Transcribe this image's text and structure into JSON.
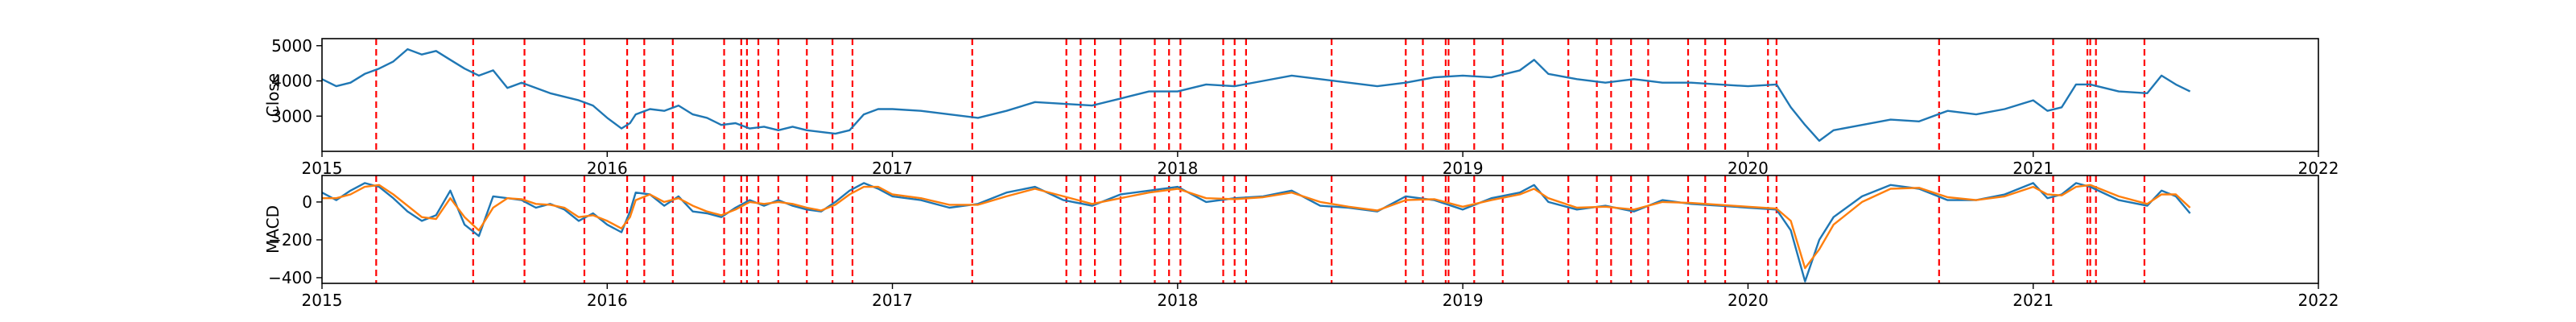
{
  "chart_data": [
    {
      "type": "line",
      "ylabel": "Close",
      "xlim": [
        2015.0,
        2022.0
      ],
      "ylim": [
        2000,
        5200
      ],
      "x_ticks": [
        2015,
        2016,
        2017,
        2018,
        2019,
        2020,
        2021,
        2022
      ],
      "x_tick_labels": [
        "2015",
        "2016",
        "2017",
        "2018",
        "2019",
        "2020",
        "2021",
        "2022"
      ],
      "y_ticks": [
        3000,
        4000,
        5000
      ],
      "y_tick_labels": [
        "3000",
        "4000",
        "5000"
      ],
      "line_color": "#1f77b4",
      "event_color": "#ff0000",
      "series": [
        {
          "x": [
            2015.0,
            2015.05,
            2015.1,
            2015.15,
            2015.2,
            2015.25,
            2015.3,
            2015.35,
            2015.4,
            2015.45,
            2015.5,
            2015.55,
            2015.6,
            2015.65,
            2015.7,
            2015.75,
            2015.8,
            2015.85,
            2015.9,
            2015.95,
            2016.0,
            2016.05,
            2016.08,
            2016.1,
            2016.15,
            2016.2,
            2016.25,
            2016.3,
            2016.35,
            2016.4,
            2016.45,
            2016.5,
            2016.55,
            2016.6,
            2016.65,
            2016.7,
            2016.75,
            2016.8,
            2016.85,
            2016.9,
            2016.95,
            2017.0,
            2017.1,
            2017.2,
            2017.3,
            2017.4,
            2017.5,
            2017.6,
            2017.7,
            2017.8,
            2017.9,
            2018.0,
            2018.1,
            2018.2,
            2018.3,
            2018.4,
            2018.5,
            2018.6,
            2018.7,
            2018.8,
            2018.9,
            2019.0,
            2019.1,
            2019.2,
            2019.25,
            2019.3,
            2019.4,
            2019.5,
            2019.6,
            2019.7,
            2019.8,
            2019.9,
            2020.0,
            2020.1,
            2020.15,
            2020.2,
            2020.25,
            2020.3,
            2020.4,
            2020.5,
            2020.6,
            2020.7,
            2020.8,
            2020.9,
            2021.0,
            2021.05,
            2021.1,
            2021.15,
            2021.2,
            2021.3,
            2021.4,
            2021.45,
            2021.5,
            2021.55
          ],
          "values": [
            4050,
            3850,
            3950,
            4200,
            4350,
            4550,
            4900,
            4750,
            4850,
            4600,
            4350,
            4150,
            4300,
            3800,
            3950,
            3800,
            3650,
            3550,
            3450,
            3300,
            2950,
            2650,
            2800,
            3050,
            3200,
            3150,
            3300,
            3050,
            2950,
            2750,
            2800,
            2650,
            2700,
            2600,
            2700,
            2600,
            2550,
            2500,
            2600,
            3050,
            3200,
            3200,
            3150,
            3050,
            2950,
            3150,
            3400,
            3350,
            3300,
            3500,
            3700,
            3700,
            3900,
            3850,
            4000,
            4150,
            4050,
            3950,
            3850,
            3950,
            4100,
            4150,
            4100,
            4300,
            4600,
            4200,
            4050,
            3950,
            4050,
            3950,
            3950,
            3900,
            3850,
            3900,
            3250,
            2750,
            2300,
            2600,
            2750,
            2900,
            2850,
            3150,
            3050,
            3200,
            3450,
            3150,
            3250,
            3900,
            3900,
            3700,
            3650,
            4150,
            3900,
            3700
          ]
        }
      ]
    },
    {
      "type": "line",
      "ylabel": "MACD",
      "xlim": [
        2015.0,
        2022.0
      ],
      "ylim": [
        -430,
        140
      ],
      "x_ticks": [
        2015,
        2016,
        2017,
        2018,
        2019,
        2020,
        2021,
        2022
      ],
      "x_tick_labels": [
        "2015",
        "2016",
        "2017",
        "2018",
        "2019",
        "2020",
        "2021",
        "2022"
      ],
      "y_ticks": [
        -400,
        -200,
        0
      ],
      "y_tick_labels": [
        "−400",
        "−200",
        "0"
      ],
      "event_color": "#ff0000",
      "series": [
        {
          "color": "#1f77b4",
          "x": [
            2015.0,
            2015.05,
            2015.1,
            2015.15,
            2015.2,
            2015.25,
            2015.3,
            2015.35,
            2015.4,
            2015.45,
            2015.5,
            2015.55,
            2015.6,
            2015.65,
            2015.7,
            2015.75,
            2015.8,
            2015.85,
            2015.9,
            2015.95,
            2016.0,
            2016.05,
            2016.08,
            2016.1,
            2016.15,
            2016.2,
            2016.25,
            2016.3,
            2016.35,
            2016.4,
            2016.45,
            2016.5,
            2016.55,
            2016.6,
            2016.65,
            2016.7,
            2016.75,
            2016.8,
            2016.85,
            2016.9,
            2016.95,
            2017.0,
            2017.1,
            2017.2,
            2017.3,
            2017.4,
            2017.5,
            2017.6,
            2017.7,
            2017.8,
            2017.9,
            2018.0,
            2018.1,
            2018.2,
            2018.3,
            2018.4,
            2018.5,
            2018.6,
            2018.7,
            2018.8,
            2018.9,
            2019.0,
            2019.1,
            2019.2,
            2019.25,
            2019.3,
            2019.4,
            2019.5,
            2019.6,
            2019.7,
            2019.8,
            2019.9,
            2020.0,
            2020.1,
            2020.15,
            2020.2,
            2020.25,
            2020.3,
            2020.4,
            2020.5,
            2020.6,
            2020.7,
            2020.8,
            2020.9,
            2021.0,
            2021.05,
            2021.1,
            2021.15,
            2021.2,
            2021.3,
            2021.4,
            2021.45,
            2021.5,
            2021.55
          ],
          "values": [
            50,
            10,
            60,
            100,
            80,
            20,
            -50,
            -100,
            -70,
            60,
            -120,
            -180,
            30,
            20,
            10,
            -30,
            -10,
            -40,
            -100,
            -60,
            -120,
            -160,
            -50,
            50,
            40,
            -20,
            30,
            -50,
            -60,
            -80,
            -30,
            10,
            -20,
            10,
            -20,
            -40,
            -50,
            0,
            60,
            100,
            70,
            30,
            10,
            -30,
            -10,
            50,
            80,
            10,
            -20,
            40,
            60,
            80,
            0,
            20,
            30,
            60,
            -20,
            -30,
            -50,
            30,
            10,
            -40,
            20,
            50,
            90,
            0,
            -40,
            -20,
            -50,
            10,
            -10,
            -20,
            -30,
            -40,
            -150,
            -420,
            -200,
            -80,
            30,
            90,
            70,
            10,
            10,
            40,
            100,
            20,
            40,
            100,
            80,
            10,
            -20,
            60,
            30,
            -60
          ]
        },
        {
          "color": "#ff7f0e",
          "x": [
            2015.0,
            2015.05,
            2015.1,
            2015.15,
            2015.2,
            2015.25,
            2015.3,
            2015.35,
            2015.4,
            2015.45,
            2015.5,
            2015.55,
            2015.6,
            2015.65,
            2015.7,
            2015.75,
            2015.8,
            2015.85,
            2015.9,
            2015.95,
            2016.0,
            2016.05,
            2016.08,
            2016.1,
            2016.15,
            2016.2,
            2016.25,
            2016.3,
            2016.35,
            2016.4,
            2016.45,
            2016.5,
            2016.55,
            2016.6,
            2016.65,
            2016.7,
            2016.75,
            2016.8,
            2016.85,
            2016.9,
            2016.95,
            2017.0,
            2017.1,
            2017.2,
            2017.3,
            2017.4,
            2017.5,
            2017.6,
            2017.7,
            2017.8,
            2017.9,
            2018.0,
            2018.1,
            2018.2,
            2018.3,
            2018.4,
            2018.5,
            2018.6,
            2018.7,
            2018.8,
            2018.9,
            2019.0,
            2019.1,
            2019.2,
            2019.25,
            2019.3,
            2019.4,
            2019.5,
            2019.6,
            2019.7,
            2019.8,
            2019.9,
            2020.0,
            2020.1,
            2020.15,
            2020.2,
            2020.25,
            2020.3,
            2020.4,
            2020.5,
            2020.6,
            2020.7,
            2020.8,
            2020.9,
            2021.0,
            2021.05,
            2021.1,
            2021.15,
            2021.2,
            2021.3,
            2021.4,
            2021.45,
            2021.5,
            2021.55
          ],
          "values": [
            20,
            20,
            40,
            80,
            90,
            40,
            -20,
            -80,
            -90,
            20,
            -80,
            -150,
            -30,
            20,
            15,
            -10,
            -15,
            -30,
            -80,
            -70,
            -100,
            -140,
            -80,
            10,
            40,
            0,
            20,
            -20,
            -50,
            -70,
            -40,
            0,
            -10,
            0,
            -10,
            -30,
            -45,
            -15,
            40,
            80,
            80,
            40,
            20,
            -15,
            -15,
            30,
            70,
            30,
            -10,
            20,
            50,
            70,
            20,
            15,
            25,
            50,
            0,
            -25,
            -45,
            10,
            15,
            -25,
            10,
            40,
            70,
            20,
            -30,
            -25,
            -40,
            0,
            -5,
            -15,
            -25,
            -35,
            -100,
            -350,
            -250,
            -120,
            0,
            70,
            75,
            25,
            10,
            30,
            80,
            40,
            35,
            80,
            90,
            30,
            -10,
            40,
            40,
            -30
          ]
        }
      ]
    }
  ],
  "events": [
    2015.19,
    2015.53,
    2015.71,
    2015.92,
    2016.07,
    2016.13,
    2016.23,
    2016.41,
    2016.47,
    2016.49,
    2016.53,
    2016.6,
    2016.7,
    2016.79,
    2016.86,
    2017.28,
    2017.61,
    2017.66,
    2017.71,
    2017.8,
    2017.92,
    2017.97,
    2018.01,
    2018.16,
    2018.2,
    2018.24,
    2018.54,
    2018.8,
    2018.86,
    2018.94,
    2018.95,
    2019.04,
    2019.14,
    2019.37,
    2019.47,
    2019.52,
    2019.59,
    2019.65,
    2019.79,
    2019.85,
    2019.92,
    2020.07,
    2020.1,
    2020.67,
    2021.07,
    2021.19,
    2021.2,
    2021.22,
    2021.39
  ]
}
